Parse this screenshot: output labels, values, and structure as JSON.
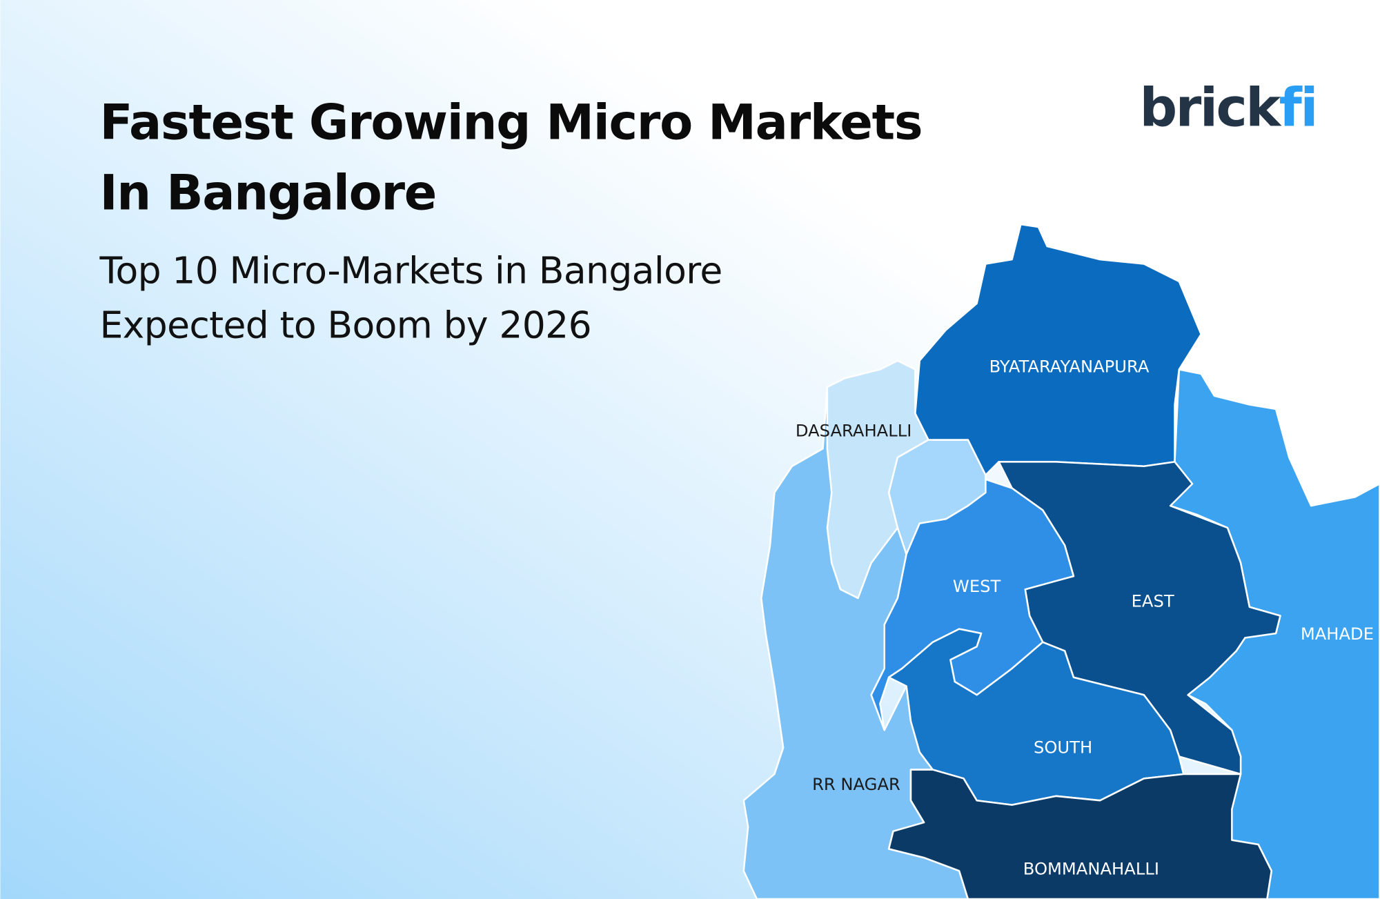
{
  "header": {
    "title_lines": [
      "Fastest Growing Micro Markets",
      "In Bangalore"
    ],
    "subtitle_lines": [
      "Top 10 Micro-Markets in Bangalore",
      "Expected to Boom by 2026"
    ],
    "logo": {
      "part1": "brick",
      "part2": "fi"
    }
  },
  "map": {
    "regions": [
      {
        "label": "BYATARAYANAPURA"
      },
      {
        "label": "DASARAHALLI"
      },
      {
        "label": "WEST"
      },
      {
        "label": "EAST"
      },
      {
        "label": "MAHADE"
      },
      {
        "label": "SOUTH"
      },
      {
        "label": "RR NAGAR"
      },
      {
        "label": "BOMMANAHALLI"
      }
    ]
  }
}
